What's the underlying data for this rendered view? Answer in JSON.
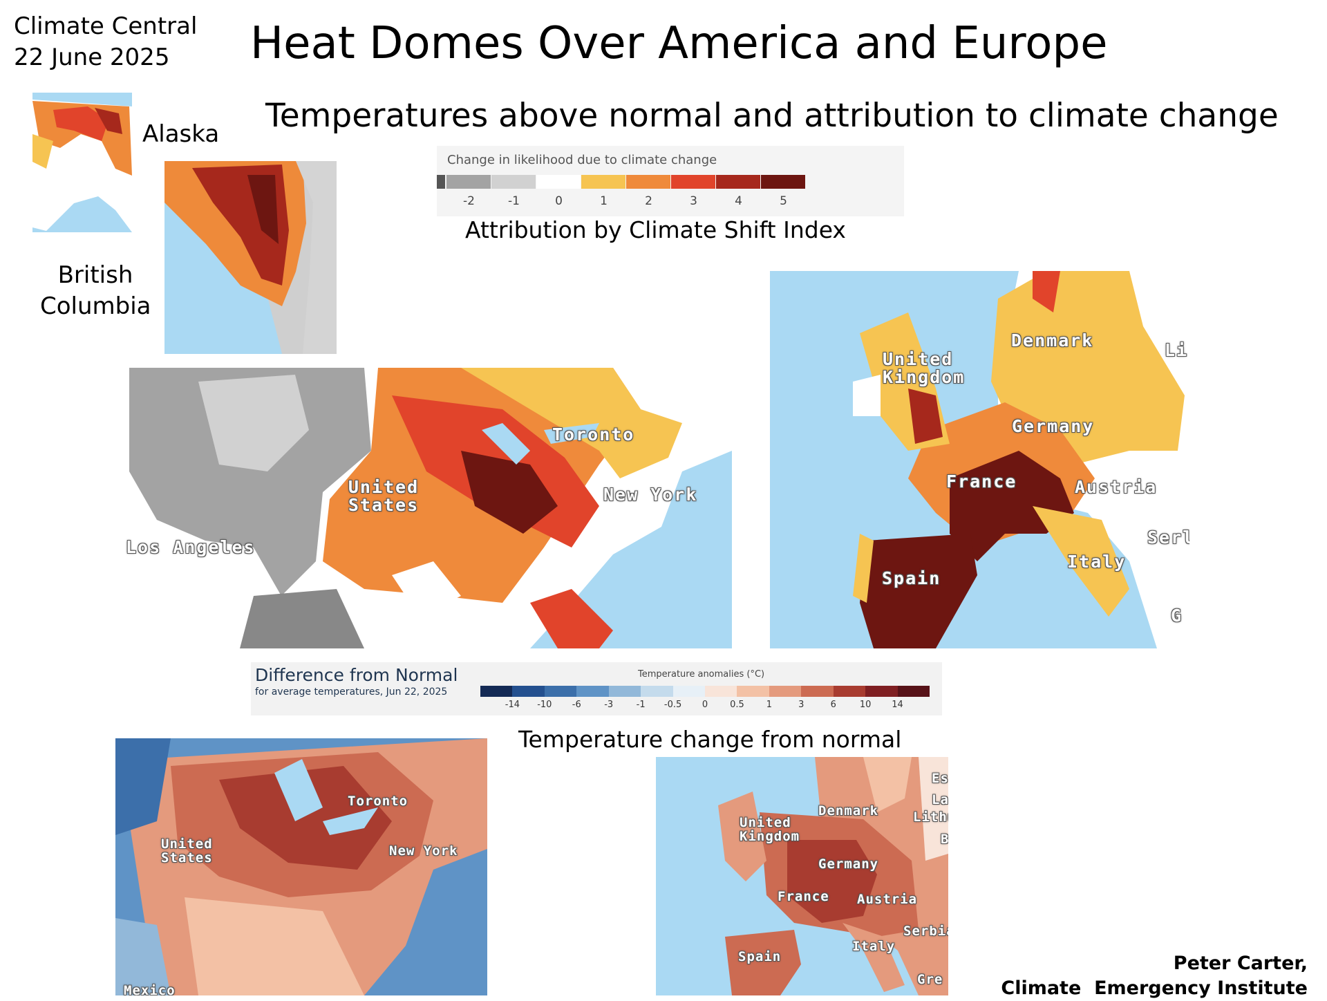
{
  "header": {
    "source": "Climate Central",
    "date": "22 June 2025",
    "title": "Heat Domes Over America and Europe",
    "subtitle": "Temperatures above normal and attribution to climate change"
  },
  "regions": {
    "alaska": "Alaska",
    "british_columbia": [
      "British",
      "Columbia"
    ]
  },
  "csi_legend": {
    "title": "Change in likelihood due to climate change",
    "ticks": [
      -2,
      -1,
      0,
      1,
      2,
      3,
      4,
      5
    ],
    "colors": [
      "#a3a3a3",
      "#d1d1d1",
      "#ffffff",
      "#f6c452",
      "#ef8a3b",
      "#e1442b",
      "#a6281c",
      "#6d1611"
    ],
    "caption": "Attribution by Climate Shift Index"
  },
  "csi_us_map": {
    "labels": [
      "United States",
      "Toronto",
      "New York",
      "Los Angeles"
    ]
  },
  "csi_europe_map": {
    "labels": [
      "United Kingdom",
      "Denmark",
      "Li",
      "Germany",
      "France",
      "Austria",
      "Serl",
      "Italy",
      "Spain",
      "G"
    ]
  },
  "anomaly_legend": {
    "title": "Difference from Normal",
    "subtitle": "for average temperatures, Jun 22, 2025",
    "scale_title": "Temperature anomalies (°C)",
    "ticks": [
      -14,
      -10,
      -6,
      -3,
      -1,
      -0.5,
      0,
      0.5,
      1,
      3,
      6,
      10,
      14
    ],
    "colors": [
      "#142a55",
      "#24508f",
      "#3c6faa",
      "#5f93c6",
      "#92b8d9",
      "#c4dbec",
      "#e7f0f7",
      "#f8e4d9",
      "#f3c1a5",
      "#e49a7d",
      "#cc6b52",
      "#a83c30",
      "#7f1f22",
      "#571218"
    ],
    "caption": "Temperature change from normal"
  },
  "anomaly_us_map": {
    "labels": [
      "Toronto",
      "United States",
      "New York",
      "Mexico"
    ]
  },
  "anomaly_europe_map": {
    "labels": [
      "Es",
      "La",
      "Lithu",
      "B",
      "Denmark",
      "United Kingdom",
      "Germany",
      "France",
      "Austria",
      "Serbia",
      "Italy",
      "Spain",
      "Gre"
    ]
  },
  "footer": {
    "author": "Peter Carter,",
    "organization": "Climate  Emergency Institute"
  }
}
